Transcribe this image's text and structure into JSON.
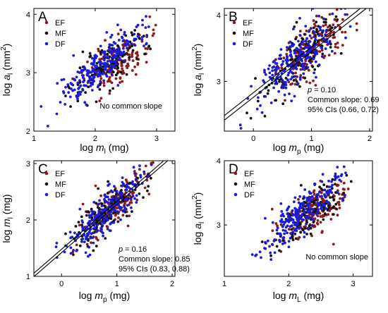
{
  "colors": {
    "EF": "#8b1a1a",
    "MF": "#111111",
    "DF": "#1c1cd6"
  },
  "legend": [
    "EF",
    "MF",
    "DF"
  ],
  "chart_data": [
    {
      "panel": "A",
      "type": "scatter",
      "xlabel": {
        "base": "log ",
        "var": "m",
        "sub": "l",
        "unit": " (mg)"
      },
      "ylabel": {
        "base": "log ",
        "var": "a",
        "sub": "l",
        "unit": " (mm",
        "sup": "2",
        "close": ")"
      },
      "xlim": [
        1,
        3.3
      ],
      "ylim": [
        2,
        4.1
      ],
      "xticks": [
        1,
        2,
        3
      ],
      "yticks": [
        2,
        3,
        4
      ],
      "annotation": [
        "No common slope"
      ],
      "fit_lines": [],
      "series": [
        {
          "name": "EF",
          "center_x": 2.35,
          "spread_x": 0.35,
          "slope": 0.55,
          "x_range": [
            1.5,
            3.0
          ],
          "noise": 0.18,
          "n": 170
        },
        {
          "name": "MF",
          "center_x": 2.2,
          "spread_x": 0.38,
          "slope": 0.72,
          "x_range": [
            1.2,
            2.9
          ],
          "noise": 0.17,
          "n": 130
        },
        {
          "name": "DF",
          "center_x": 2.1,
          "spread_x": 0.42,
          "slope": 0.85,
          "x_range": [
            1.1,
            2.9
          ],
          "noise": 0.17,
          "n": 230
        }
      ]
    },
    {
      "panel": "B",
      "type": "scatter",
      "xlabel": {
        "base": "log ",
        "var": "m",
        "sub": "p",
        "unit": " (mg)"
      },
      "ylabel": {
        "base": "log ",
        "var": "a",
        "sub": "l",
        "unit": " (mm",
        "sup": "2",
        "close": ")"
      },
      "xlim": [
        -0.5,
        2.05
      ],
      "ylim": [
        2.25,
        4.1
      ],
      "xticks": [
        0,
        1,
        2
      ],
      "yticks": [
        3,
        4
      ],
      "annotation": [
        "p = 0.10",
        "Common slope: 0.69",
        "95% CIs (0.66, 0.72)"
      ],
      "fit_lines": [
        {
          "slope": 0.69,
          "intercept": 2.76
        },
        {
          "slope": 0.69,
          "intercept": 2.83
        }
      ],
      "series": [
        {
          "name": "EF",
          "center_x": 1.0,
          "spread_x": 0.4,
          "slope": 0.69,
          "x_range": [
            0.0,
            1.8
          ],
          "noise": 0.2,
          "n": 170
        },
        {
          "name": "MF",
          "center_x": 0.8,
          "spread_x": 0.4,
          "slope": 0.69,
          "x_range": [
            -0.2,
            1.7
          ],
          "noise": 0.2,
          "n": 130
        },
        {
          "name": "DF",
          "center_x": 0.8,
          "spread_x": 0.45,
          "slope": 0.69,
          "x_range": [
            -0.3,
            1.7
          ],
          "noise": 0.2,
          "n": 230
        }
      ]
    },
    {
      "panel": "C",
      "type": "scatter",
      "xlabel": {
        "base": "log ",
        "var": "m",
        "sub": "p",
        "unit": " (mg)"
      },
      "ylabel": {
        "base": "log ",
        "var": "m",
        "sub": "l",
        "unit": " (mg)"
      },
      "xlim": [
        -0.5,
        2.05
      ],
      "ylim": [
        1.0,
        3.05
      ],
      "xticks": [
        0,
        1,
        2
      ],
      "yticks": [
        1,
        2,
        3
      ],
      "annotation": [
        "p = 0.16",
        "Common slope: 0.85",
        "95% CIs (0.83, 0.88)"
      ],
      "fit_lines": [
        {
          "slope": 0.85,
          "intercept": 1.42
        },
        {
          "slope": 0.85,
          "intercept": 1.48
        }
      ],
      "series": [
        {
          "name": "EF",
          "center_x": 1.0,
          "spread_x": 0.4,
          "slope": 0.85,
          "x_range": [
            0.0,
            1.8
          ],
          "noise": 0.18,
          "n": 170
        },
        {
          "name": "MF",
          "center_x": 0.8,
          "spread_x": 0.4,
          "slope": 0.85,
          "x_range": [
            -0.2,
            1.7
          ],
          "noise": 0.18,
          "n": 130
        },
        {
          "name": "DF",
          "center_x": 0.8,
          "spread_x": 0.45,
          "slope": 0.85,
          "x_range": [
            -0.3,
            1.7
          ],
          "noise": 0.18,
          "n": 230
        }
      ]
    },
    {
      "panel": "D",
      "type": "scatter",
      "xlabel": {
        "base": "log ",
        "var": "m",
        "sub": "L",
        "unit": " (mg)"
      },
      "ylabel": {
        "base": "log ",
        "var": "a",
        "sub": "l",
        "unit": " (mm",
        "sup": "2",
        "close": ")"
      },
      "xlim": [
        1,
        3.3
      ],
      "ylim": [
        2.2,
        4.0
      ],
      "xticks": [
        1,
        2,
        3
      ],
      "yticks": [
        3,
        4
      ],
      "annotation": [
        "No common slope"
      ],
      "fit_lines": [],
      "series": [
        {
          "name": "EF",
          "center_x": 2.45,
          "spread_x": 0.35,
          "slope": 0.55,
          "x_range": [
            1.6,
            3.0
          ],
          "noise": 0.17,
          "n": 170
        },
        {
          "name": "MF",
          "center_x": 2.3,
          "spread_x": 0.38,
          "slope": 0.72,
          "x_range": [
            1.3,
            3.0
          ],
          "noise": 0.16,
          "n": 130
        },
        {
          "name": "DF",
          "center_x": 2.2,
          "spread_x": 0.42,
          "slope": 0.85,
          "x_range": [
            1.2,
            2.9
          ],
          "noise": 0.16,
          "n": 230
        }
      ]
    }
  ]
}
